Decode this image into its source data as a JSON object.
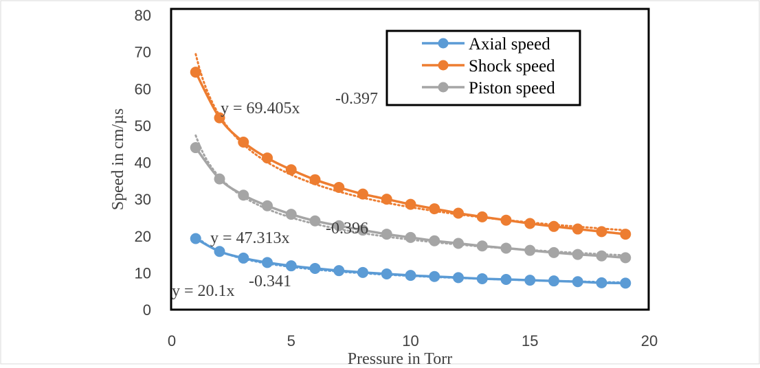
{
  "chart_data": {
    "type": "line",
    "xlabel": "Pressure in Torr",
    "ylabel": "Speed in cm/µs",
    "xlim": [
      0,
      20
    ],
    "ylim": [
      0,
      80
    ],
    "xticks": [
      0,
      5,
      10,
      15,
      20
    ],
    "xtick_labels": [
      "0",
      "5",
      "10",
      "15",
      "20"
    ],
    "yticks": [
      0,
      10,
      20,
      30,
      40,
      50,
      60,
      70,
      80
    ],
    "ytick_labels": [
      "0",
      "10",
      "20",
      "30",
      "40",
      "50",
      "60",
      "70",
      "80"
    ],
    "grid": false,
    "legend_position": "top-right",
    "x": [
      1,
      2,
      3,
      4,
      5,
      6,
      7,
      8,
      9,
      10,
      11,
      12,
      13,
      14,
      15,
      16,
      17,
      18,
      19
    ],
    "series": [
      {
        "name": "Axial speed",
        "color": "#5B9BD5",
        "marker": "circle",
        "values": [
          19.3,
          15.8,
          14.0,
          12.8,
          11.9,
          11.2,
          10.6,
          10.1,
          9.7,
          9.3,
          9.0,
          8.7,
          8.4,
          8.2,
          8.0,
          7.8,
          7.6,
          7.3,
          7.2
        ],
        "trendline": {
          "a": 20.1,
          "b": -0.341,
          "label_base": "y = 20.1x",
          "label_exp": "-0.341"
        }
      },
      {
        "name": "Shock speed",
        "color": "#ED7D31",
        "marker": "circle",
        "values": [
          64.5,
          52.1,
          45.5,
          41.2,
          38.0,
          35.3,
          33.2,
          31.4,
          30.0,
          28.6,
          27.4,
          26.2,
          25.2,
          24.3,
          23.4,
          22.6,
          21.9,
          21.2,
          20.5
        ],
        "trendline": {
          "a": 69.405,
          "b": -0.397,
          "label_base": "y = 69.405x",
          "label_exp": "-0.397"
        }
      },
      {
        "name": "Piston speed",
        "color": "#A5A5A5",
        "marker": "circle",
        "values": [
          44.0,
          35.5,
          31.1,
          28.2,
          25.9,
          24.1,
          22.8,
          21.6,
          20.5,
          19.6,
          18.7,
          18.0,
          17.3,
          16.7,
          16.1,
          15.5,
          15.0,
          14.6,
          14.1
        ],
        "trendline": {
          "a": 47.313,
          "b": -0.396,
          "label_base": "y = 47.313x",
          "label_exp": "-0.396"
        }
      }
    ]
  }
}
